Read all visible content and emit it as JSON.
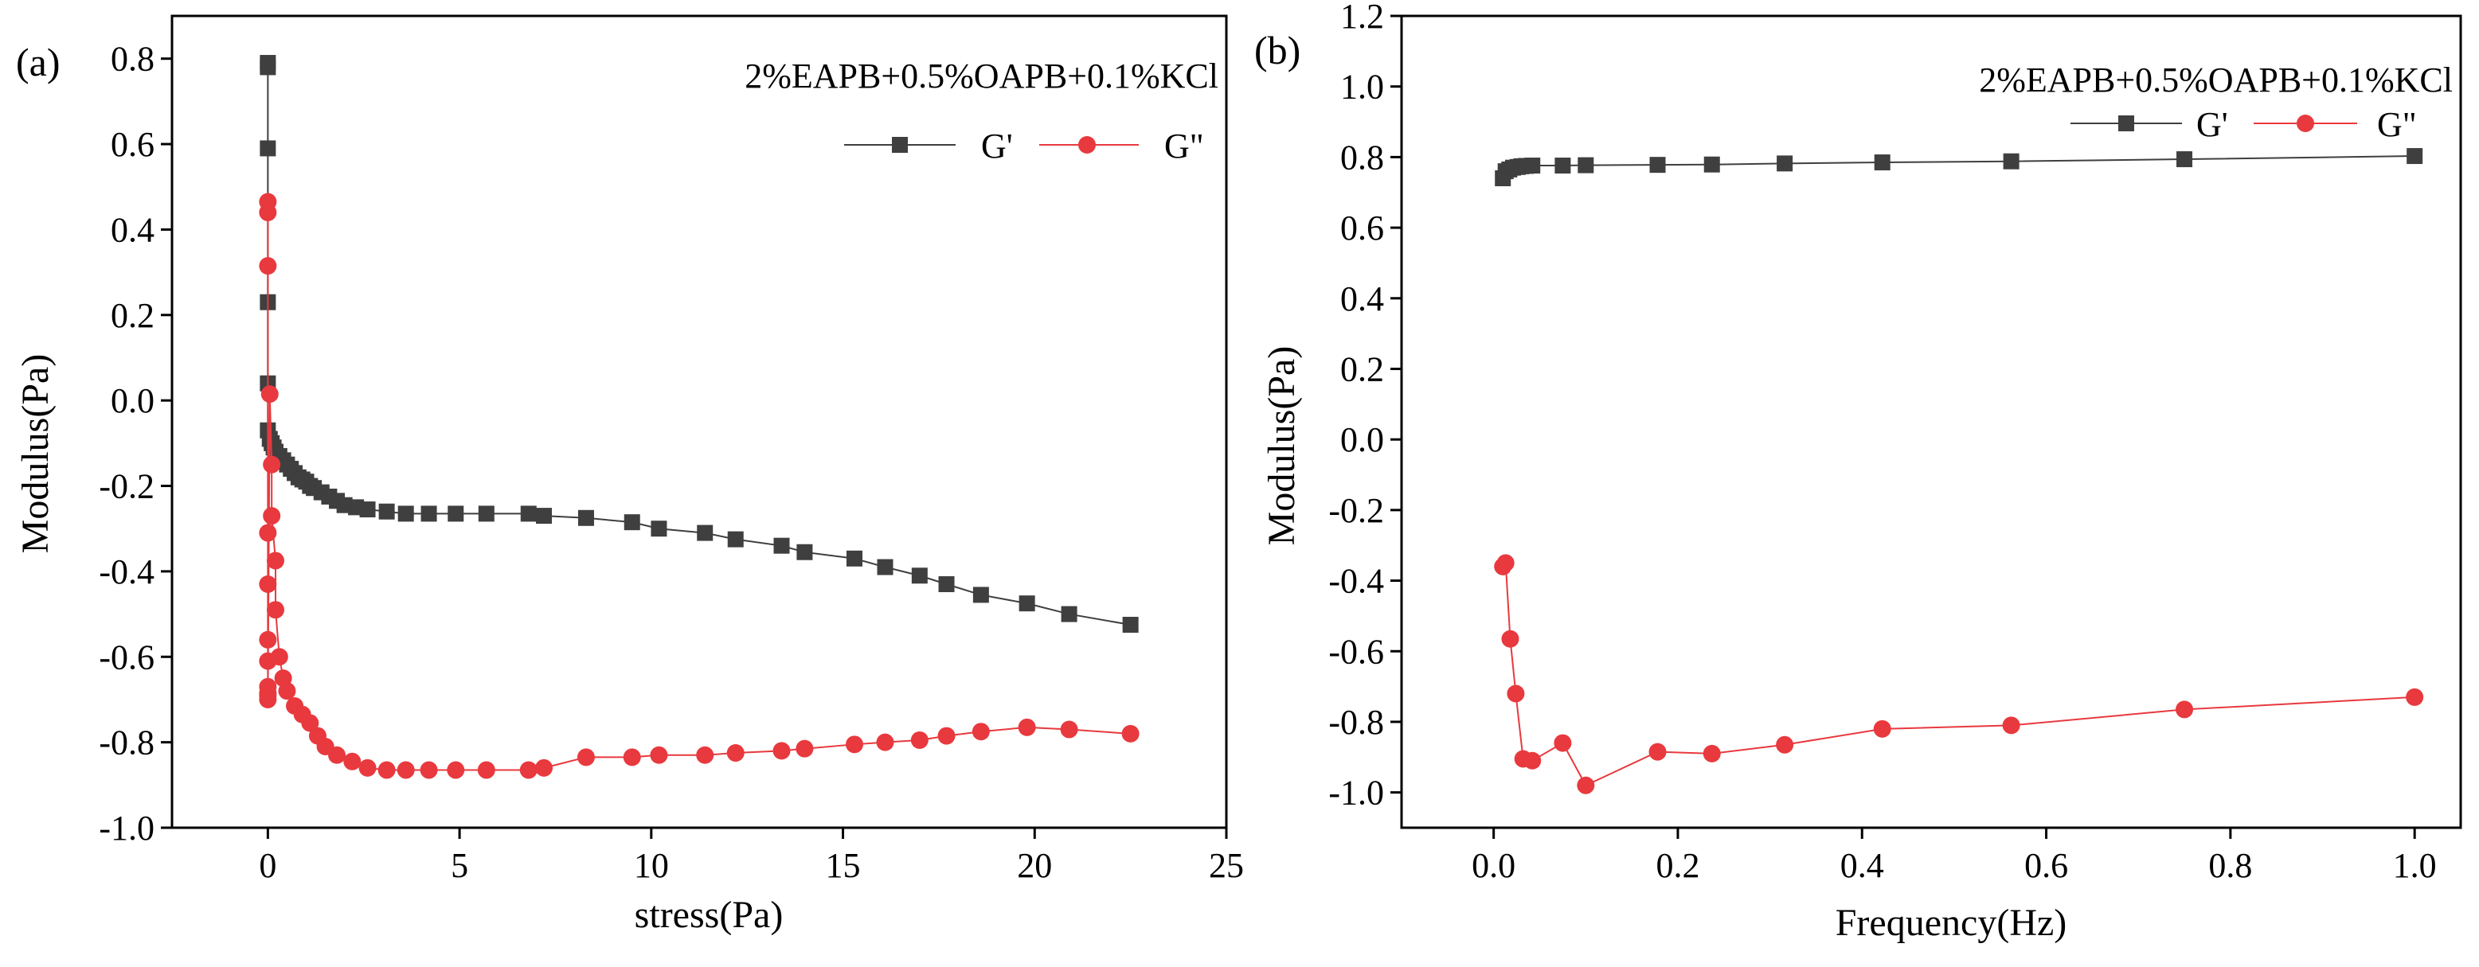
{
  "chart_data": [
    {
      "type": "scatter",
      "panel_label": "(a)",
      "annotation": "2%EAPB+0.5%OAPB+0.1%KCl",
      "xlabel": "stress(Pa)",
      "ylabel": "Modulus(Pa)",
      "xlim": [
        -2.5,
        25
      ],
      "ylim": [
        -1.0,
        0.9
      ],
      "xticks": [
        0,
        5,
        10,
        15,
        20,
        25
      ],
      "yticks": [
        -1.0,
        -0.8,
        -0.6,
        -0.4,
        -0.2,
        0.0,
        0.2,
        0.4,
        0.6,
        0.8
      ],
      "xtick_labels": [
        "0",
        "5",
        "10",
        "15",
        "20",
        "25"
      ],
      "ytick_labels": [
        "-1.0",
        "-0.8",
        "-0.6",
        "-0.4",
        "-0.2",
        "0.0",
        "0.2",
        "0.4",
        "0.6",
        "0.8"
      ],
      "grid": false,
      "legend_position": "top-right",
      "series": [
        {
          "name": "G'",
          "color": "#3f3f3f",
          "marker": "square",
          "x": [
            0.0,
            0.0,
            0.0,
            0.0,
            0.0,
            0.0,
            0.05,
            0.1,
            0.15,
            0.2,
            0.3,
            0.4,
            0.5,
            0.6,
            0.7,
            0.8,
            0.9,
            1.0,
            1.1,
            1.2,
            1.4,
            1.6,
            1.8,
            2.0,
            2.3,
            2.6,
            3.1,
            3.6,
            4.2,
            4.9,
            5.7,
            6.8,
            7.2,
            8.3,
            9.5,
            10.2,
            11.4,
            12.2,
            13.4,
            14.0,
            15.3,
            16.1,
            17.0,
            17.7,
            18.6,
            19.8,
            20.9,
            22.5
          ],
          "y": [
            0.79,
            0.78,
            0.59,
            0.23,
            0.04,
            -0.07,
            -0.09,
            -0.1,
            -0.11,
            -0.12,
            -0.13,
            -0.14,
            -0.15,
            -0.16,
            -0.17,
            -0.18,
            -0.185,
            -0.19,
            -0.2,
            -0.205,
            -0.215,
            -0.225,
            -0.235,
            -0.245,
            -0.25,
            -0.255,
            -0.26,
            -0.265,
            -0.265,
            -0.265,
            -0.265,
            -0.265,
            -0.27,
            -0.275,
            -0.285,
            -0.3,
            -0.31,
            -0.325,
            -0.34,
            -0.355,
            -0.37,
            -0.39,
            -0.41,
            -0.43,
            -0.455,
            -0.475,
            -0.5,
            -0.525
          ]
        },
        {
          "name": "G\"",
          "color": "#e8393e",
          "marker": "circle",
          "x": [
            0.0,
            0.0,
            0.0,
            0.0,
            0.0,
            0.0,
            0.0,
            0.0,
            0.0,
            0.0,
            0.0,
            0.05,
            0.1,
            0.1,
            0.2,
            0.2,
            0.3,
            0.4,
            0.5,
            0.7,
            0.9,
            1.1,
            1.3,
            1.5,
            1.8,
            2.2,
            2.6,
            3.1,
            3.6,
            4.2,
            4.9,
            5.7,
            6.8,
            7.2,
            8.3,
            9.5,
            10.2,
            11.4,
            12.2,
            13.4,
            14.0,
            15.3,
            16.1,
            17.0,
            17.7,
            18.6,
            19.8,
            20.9,
            22.5
          ],
          "y": [
            0.465,
            0.44,
            0.315,
            -0.31,
            -0.43,
            -0.56,
            -0.61,
            -0.67,
            -0.685,
            -0.69,
            -0.7,
            0.015,
            -0.15,
            -0.27,
            -0.375,
            -0.49,
            -0.6,
            -0.65,
            -0.68,
            -0.715,
            -0.735,
            -0.755,
            -0.785,
            -0.81,
            -0.83,
            -0.845,
            -0.86,
            -0.865,
            -0.865,
            -0.865,
            -0.865,
            -0.865,
            -0.865,
            -0.86,
            -0.835,
            -0.835,
            -0.83,
            -0.83,
            -0.825,
            -0.82,
            -0.815,
            -0.805,
            -0.8,
            -0.795,
            -0.785,
            -0.775,
            -0.765,
            -0.77,
            -0.78
          ]
        }
      ]
    },
    {
      "type": "line",
      "panel_label": "(b)",
      "annotation": "2%EAPB+0.5%OAPB+0.1%KCl",
      "xlabel": "Frequency(Hz)",
      "ylabel": "Modulus(Pa)",
      "xlim": [
        -0.1,
        1.05
      ],
      "ylim": [
        -1.1,
        1.2
      ],
      "xticks": [
        0.0,
        0.2,
        0.4,
        0.6,
        0.8,
        1.0
      ],
      "yticks": [
        -1.0,
        -0.8,
        -0.6,
        -0.4,
        -0.2,
        0.0,
        0.2,
        0.4,
        0.6,
        0.8,
        1.0,
        1.2
      ],
      "xtick_labels": [
        "0.0",
        "0.2",
        "0.4",
        "0.6",
        "0.8",
        "1.0"
      ],
      "ytick_labels": [
        "-1.0",
        "-0.8",
        "-0.6",
        "-0.4",
        "-0.2",
        "0.0",
        "0.2",
        "0.4",
        "0.6",
        "0.8",
        "1.0",
        "1.2"
      ],
      "grid": false,
      "legend_position": "top-right",
      "series": [
        {
          "name": "G'",
          "color": "#3f3f3f",
          "marker": "square",
          "x": [
            0.01,
            0.013,
            0.017,
            0.021,
            0.026,
            0.03,
            0.035,
            0.042,
            0.075,
            0.1,
            0.178,
            0.237,
            0.316,
            0.422,
            0.562,
            0.75,
            1.0
          ],
          "y": [
            0.74,
            0.76,
            0.765,
            0.77,
            0.772,
            0.774,
            0.775,
            0.776,
            0.776,
            0.777,
            0.778,
            0.779,
            0.782,
            0.785,
            0.788,
            0.794,
            0.803
          ]
        },
        {
          "name": "G\"",
          "color": "#e8393e",
          "marker": "circle",
          "x": [
            0.01,
            0.013,
            0.018,
            0.024,
            0.032,
            0.042,
            0.075,
            0.1,
            0.178,
            0.237,
            0.316,
            0.422,
            0.562,
            0.75,
            1.0
          ],
          "y": [
            -0.36,
            -0.35,
            -0.565,
            -0.72,
            -0.905,
            -0.91,
            -0.86,
            -0.98,
            -0.885,
            -0.89,
            -0.865,
            -0.82,
            -0.81,
            -0.765,
            -0.73
          ]
        }
      ]
    }
  ]
}
